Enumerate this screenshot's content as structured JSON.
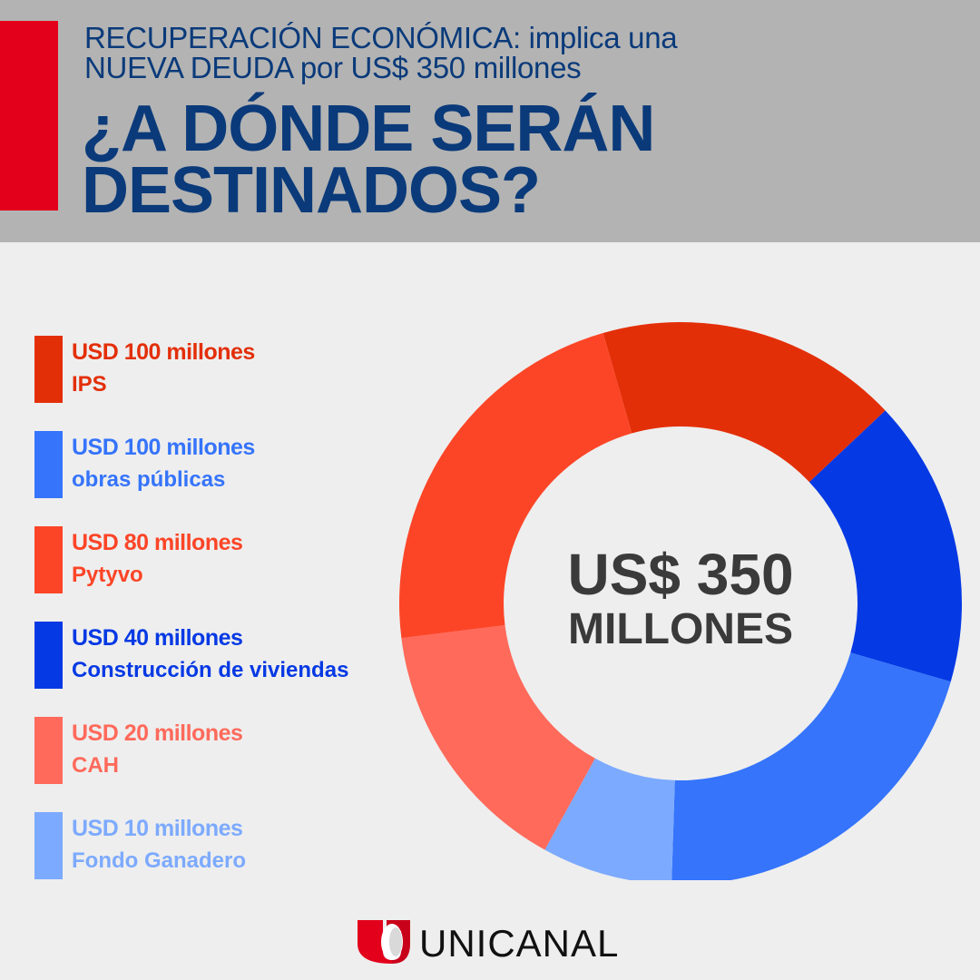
{
  "header": {
    "subtitle_line1": "RECUPERACIÓN ECONÓMICA: implica una",
    "subtitle_line2": "NUEVA DEUDA por US$ 350 millones",
    "title_line1": "¿A DÓNDE SERÁN",
    "title_line2": "DESTINADOS?"
  },
  "center": {
    "amount": "US$ 350",
    "unit": "MILLONES"
  },
  "brand": {
    "name": "UNICANAL"
  },
  "chart_data": {
    "type": "pie",
    "total": 350,
    "categories": [
      "IPS",
      "obras públicas",
      "Pytyvo",
      "Construcción de viviendas",
      "CAH",
      "Fondo Ganadero"
    ],
    "values": [
      100,
      100,
      80,
      40,
      20,
      10
    ],
    "amount_labels": [
      "USD 100 millones",
      "USD 100 millones",
      "USD 80 millones",
      "USD 40 millones",
      "USD 20 millones",
      "USD 10 millones"
    ],
    "colors": [
      "#e32f08",
      "#3574fb",
      "#fc4527",
      "#0539e4",
      "#ff6a5b",
      "#7caafe"
    ],
    "slice_colors_in_drawing_order": [
      "#e32f08",
      "#0539e4",
      "#3574fb",
      "#7caafe",
      "#ff6a5b",
      "#fc4527"
    ],
    "slice_values_in_drawing_order": [
      58,
      55,
      70,
      25,
      50,
      75
    ],
    "legend_placement": "left"
  }
}
